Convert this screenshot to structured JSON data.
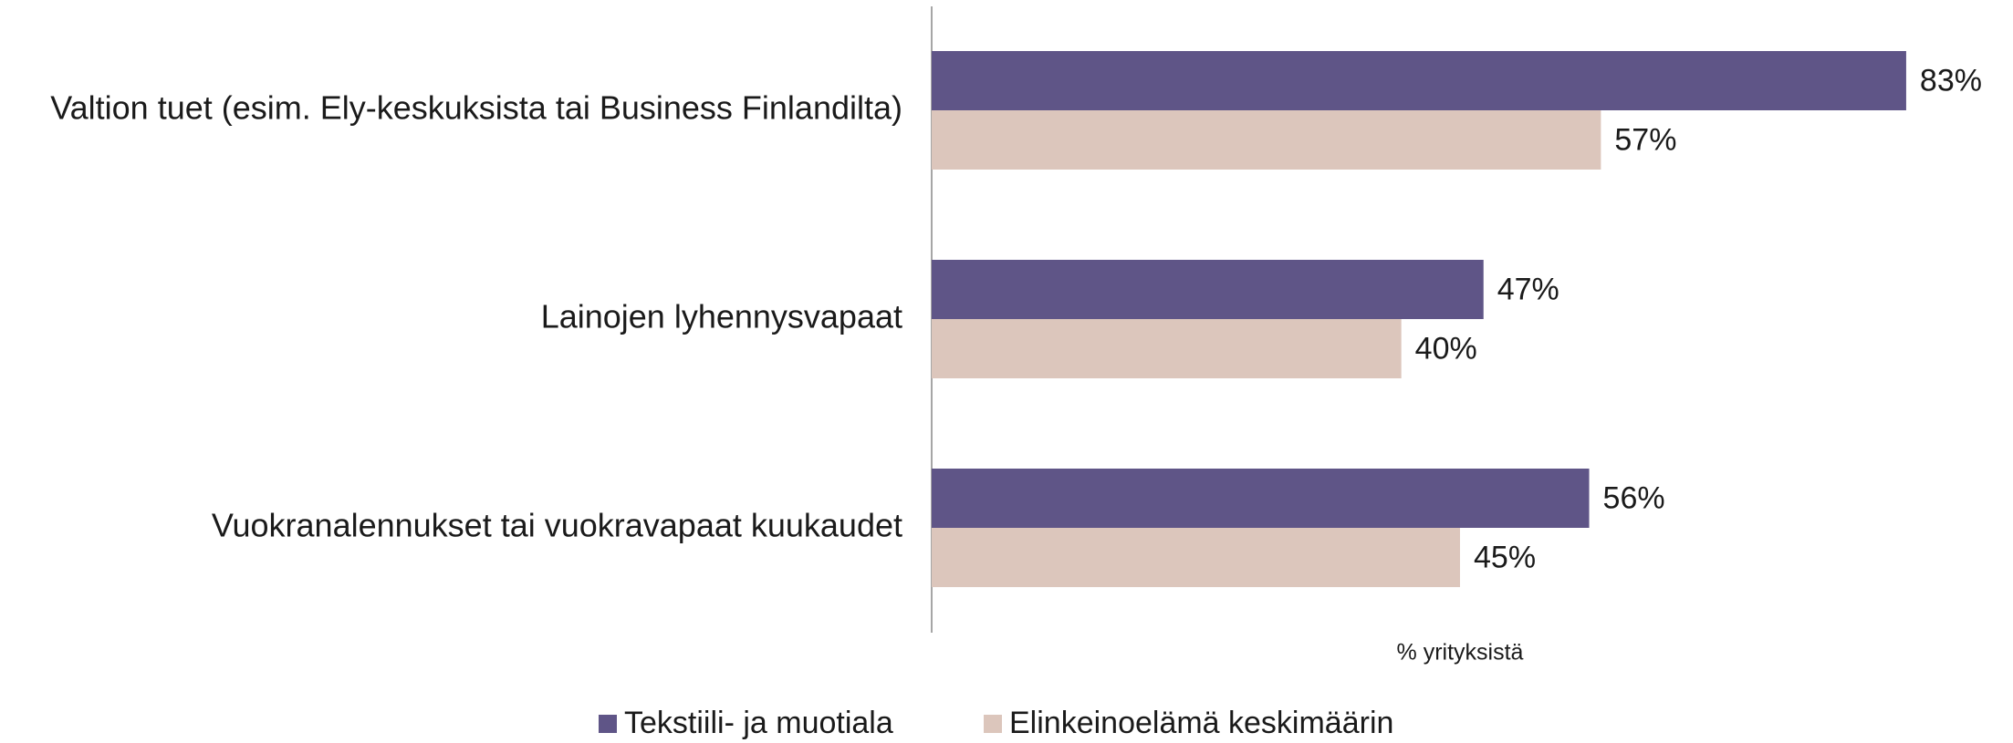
{
  "chart_data": {
    "type": "bar",
    "orientation": "horizontal",
    "categories": [
      "Valtion tuet (esim. Ely-keskuksista tai Business Finlandilta)",
      "Lainojen lyhennysvapaat",
      "Vuokranalennukset tai vuokravapaat kuukaudet"
    ],
    "series": [
      {
        "name": "Tekstiili- ja muotiala",
        "color": "#5f5587",
        "values": [
          83,
          47,
          56
        ],
        "value_labels": [
          "83%",
          "47%",
          "56%"
        ]
      },
      {
        "name": "Elinkeinoelämä keskimäärin",
        "color": "#dcc6bc",
        "values": [
          57,
          40,
          45
        ],
        "value_labels": [
          "57%",
          "40%",
          "45%"
        ]
      }
    ],
    "xlabel": "% yrityksistä",
    "xlim": [
      0,
      90
    ],
    "legend": "bottom"
  }
}
